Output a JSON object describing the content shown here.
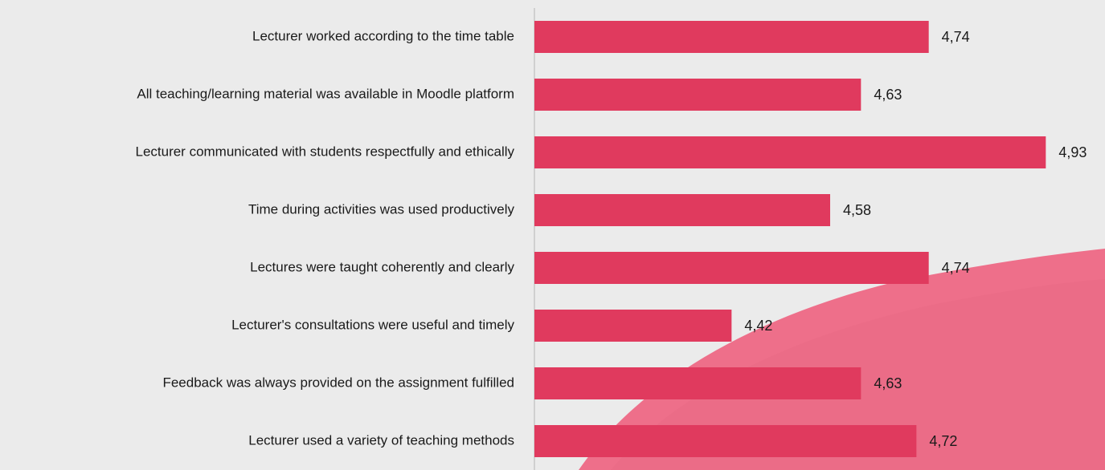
{
  "chart_data": {
    "type": "barh",
    "categories": [
      "Lecturer worked according to the time table",
      "All teaching/learning material was available in Moodle platform",
      "Lecturer communicated with students respectfully and ethically",
      "Time during activities was used productively",
      "Lectures were taught coherently and clearly",
      "Lecturer's consultations were useful and timely",
      "Feedback was always provided on the assignment fulfilled",
      "Lecturer used a variety of teaching methods"
    ],
    "values": [
      4.74,
      4.63,
      4.93,
      4.58,
      4.74,
      4.42,
      4.63,
      4.72
    ],
    "value_labels": [
      "4,74",
      "4,63",
      "4,93",
      "4,58",
      "4,74",
      "4,42",
      "4,63",
      "4,72"
    ],
    "color": "#e03a5e",
    "xlim": [
      4.1,
      5.0
    ]
  }
}
